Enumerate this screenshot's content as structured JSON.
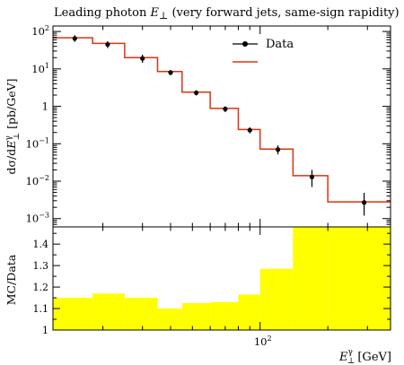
{
  "chart_data": {
    "type": "line",
    "title_prefix": "Leading photon ",
    "title_var": "E",
    "title_sub": "⊥",
    "title_suffix": " (very forward jets, same-sign rapidity)",
    "x_scale": "log",
    "xlim": [
      12,
      380
    ],
    "x_bin_edges": [
      12,
      18,
      25,
      35,
      45,
      60,
      80,
      100,
      140,
      200,
      380
    ],
    "x_major_tick_label": "10",
    "x_major_tick_exp": "2",
    "xlabel_var": "E",
    "xlabel_sup": "γ",
    "xlabel_sub": "⊥",
    "xlabel_unit": "[GeV]",
    "main_panel": {
      "y_scale": "log",
      "ylim": [
        0.0006,
        140
      ],
      "ylabel": "dσ/dE⊥γ [pb/GeV]",
      "ylabel_parts": {
        "d1": "dσ/d",
        "var": "E",
        "sup": "γ",
        "sub": "⊥",
        "unit": " [pb/GeV]"
      },
      "yticks": [
        {
          "value": 100,
          "base": "10",
          "exp": "2"
        },
        {
          "value": 10,
          "base": "10",
          "exp": "1"
        },
        {
          "value": 1,
          "base": "1",
          "exp": ""
        },
        {
          "value": 0.1,
          "base": "10",
          "exp": "−1"
        },
        {
          "value": 0.01,
          "base": "10",
          "exp": "−2"
        },
        {
          "value": 0.001,
          "base": "10",
          "exp": "−3"
        }
      ],
      "series": [
        {
          "name": "Data",
          "kind": "points",
          "color": "#000000",
          "x": [
            15,
            21,
            30,
            40,
            52,
            70,
            90,
            120,
            170,
            290
          ],
          "y": [
            65,
            45,
            19,
            8,
            2.3,
            0.85,
            0.23,
            0.07,
            0.013,
            0.0027
          ],
          "err_low": [
            12,
            9,
            4.5,
            1.2,
            0.35,
            0.15,
            0.04,
            0.018,
            0.006,
            0.0015
          ],
          "err_high": [
            14,
            10,
            5,
            1.3,
            0.35,
            0.15,
            0.045,
            0.02,
            0.007,
            0.0022
          ]
        },
        {
          "name": "",
          "kind": "histogram",
          "color": "#dd3311",
          "values": [
            68,
            48,
            20,
            8.5,
            2.4,
            0.88,
            0.24,
            0.072,
            0.014,
            0.0028
          ]
        }
      ]
    },
    "ratio_panel": {
      "ylabel": "MC/Data",
      "ylim": [
        1,
        1.48
      ],
      "ytick_labels": [
        "1",
        "1.1",
        "1.2",
        "1.3",
        "1.4"
      ],
      "ytick_values": [
        1,
        1.1,
        1.2,
        1.3,
        1.4
      ],
      "band_color": "#ffff00",
      "values": [
        1.15,
        1.17,
        1.15,
        1.1,
        1.125,
        1.13,
        1.165,
        1.285,
        1.48,
        1.48
      ]
    }
  }
}
